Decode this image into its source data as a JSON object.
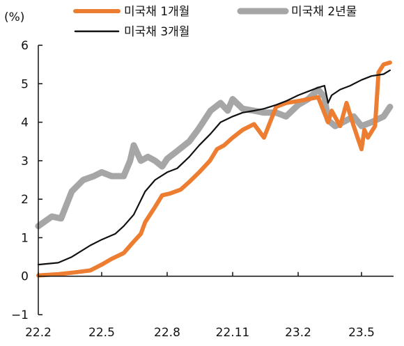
{
  "chart_data": {
    "type": "line",
    "title": "",
    "xlabel": "",
    "ylabel": "(%)",
    "ylim": [
      -1,
      6
    ],
    "yticks": [
      -1,
      0,
      1,
      2,
      3,
      4,
      5,
      6
    ],
    "ytick_labels": [
      "−1",
      "0",
      "1",
      "2",
      "3",
      "4",
      "5",
      "6"
    ],
    "xlim": [
      "2022-02-01",
      "2023-06-15"
    ],
    "xtick_positions": [
      "2022-02-01",
      "2022-05-01",
      "2022-08-01",
      "2022-11-01",
      "2023-02-01",
      "2023-05-01"
    ],
    "xtick_labels": [
      "22.2",
      "22.5",
      "22.8",
      "22.11",
      "23.2",
      "23.5"
    ],
    "grid": false,
    "legend": "top",
    "series": [
      {
        "name": "미국채 1개월",
        "color": "#ED7D31",
        "x": [
          "2022-02-01",
          "2022-03-01",
          "2022-03-25",
          "2022-04-15",
          "2022-05-01",
          "2022-05-15",
          "2022-06-01",
          "2022-06-15",
          "2022-06-25",
          "2022-07-01",
          "2022-07-15",
          "2022-07-25",
          "2022-08-05",
          "2022-08-20",
          "2022-09-01",
          "2022-09-15",
          "2022-09-30",
          "2022-10-10",
          "2022-10-20",
          "2022-11-01",
          "2022-11-15",
          "2022-12-01",
          "2022-12-15",
          "2023-01-01",
          "2023-01-15",
          "2023-02-01",
          "2023-02-15",
          "2023-03-01",
          "2023-03-15",
          "2023-03-20",
          "2023-04-01",
          "2023-04-10",
          "2023-04-20",
          "2023-05-01",
          "2023-05-05",
          "2023-05-10",
          "2023-05-20",
          "2023-05-25",
          "2023-06-01",
          "2023-06-10"
        ],
        "values": [
          0.02,
          0.05,
          0.1,
          0.15,
          0.3,
          0.45,
          0.6,
          0.9,
          1.1,
          1.4,
          1.8,
          2.1,
          2.15,
          2.25,
          2.45,
          2.7,
          3.0,
          3.3,
          3.4,
          3.6,
          3.8,
          3.95,
          3.6,
          4.4,
          4.5,
          4.55,
          4.6,
          4.65,
          4.0,
          4.3,
          3.9,
          4.5,
          3.9,
          3.3,
          3.8,
          3.6,
          3.9,
          5.3,
          5.5,
          5.55
        ]
      },
      {
        "name": "미국채 2년물",
        "color": "#A6A6A6",
        "x": [
          "2022-02-01",
          "2022-02-20",
          "2022-03-05",
          "2022-03-20",
          "2022-04-05",
          "2022-04-20",
          "2022-05-01",
          "2022-05-15",
          "2022-06-01",
          "2022-06-10",
          "2022-06-15",
          "2022-06-25",
          "2022-07-05",
          "2022-07-15",
          "2022-07-25",
          "2022-08-01",
          "2022-08-15",
          "2022-09-01",
          "2022-09-15",
          "2022-10-01",
          "2022-10-15",
          "2022-10-25",
          "2022-11-01",
          "2022-11-15",
          "2022-12-01",
          "2022-12-15",
          "2023-01-01",
          "2023-01-15",
          "2023-02-01",
          "2023-02-15",
          "2023-03-01",
          "2023-03-10",
          "2023-03-15",
          "2023-03-25",
          "2023-04-05",
          "2023-04-20",
          "2023-05-01",
          "2023-05-15",
          "2023-06-01",
          "2023-06-10"
        ],
        "values": [
          1.3,
          1.55,
          1.5,
          2.2,
          2.5,
          2.6,
          2.7,
          2.6,
          2.6,
          3.0,
          3.4,
          3.0,
          3.1,
          3.0,
          2.85,
          3.05,
          3.25,
          3.5,
          3.85,
          4.3,
          4.5,
          4.3,
          4.6,
          4.35,
          4.3,
          4.25,
          4.25,
          4.15,
          4.45,
          4.6,
          4.85,
          4.65,
          4.05,
          3.9,
          4.0,
          4.15,
          3.9,
          4.0,
          4.15,
          4.4
        ]
      },
      {
        "name": "미국채 3개월",
        "color": "#111111",
        "x": [
          "2022-02-01",
          "2022-03-01",
          "2022-03-20",
          "2022-04-15",
          "2022-05-01",
          "2022-05-20",
          "2022-06-01",
          "2022-06-15",
          "2022-07-01",
          "2022-07-15",
          "2022-08-01",
          "2022-08-15",
          "2022-09-01",
          "2022-09-15",
          "2022-10-01",
          "2022-10-15",
          "2022-11-01",
          "2022-11-15",
          "2022-12-01",
          "2022-12-15",
          "2023-01-01",
          "2023-01-15",
          "2023-02-01",
          "2023-02-15",
          "2023-03-01",
          "2023-03-10",
          "2023-03-15",
          "2023-03-20",
          "2023-04-01",
          "2023-04-15",
          "2023-05-01",
          "2023-05-15",
          "2023-06-01",
          "2023-06-10"
        ],
        "values": [
          0.3,
          0.35,
          0.5,
          0.8,
          0.95,
          1.1,
          1.3,
          1.6,
          2.2,
          2.5,
          2.7,
          2.8,
          3.1,
          3.4,
          3.7,
          4.0,
          4.15,
          4.25,
          4.3,
          4.35,
          4.45,
          4.55,
          4.7,
          4.8,
          4.9,
          4.95,
          4.5,
          4.7,
          4.85,
          4.95,
          5.1,
          5.2,
          5.25,
          5.35
        ]
      }
    ]
  }
}
